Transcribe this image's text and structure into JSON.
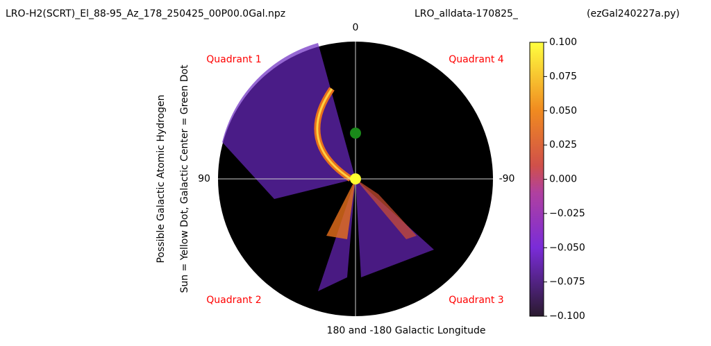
{
  "chart_data": {
    "type": "polar",
    "title_left": "LRO-H2(SCRT)_El_88-95_Az_178_250425_00P00.0Gal.npz",
    "title_center": "LRO_alldata-170825_",
    "title_right": "(ezGal240227a.py)",
    "xlabel": "180 and -180 Galactic Longitude",
    "ylabel_lines": [
      "Possible Galactic Atomic Hydrogen",
      "Sun = Yellow Dot, Galactic Center = Green Dot"
    ],
    "thetaticks": [
      0,
      90,
      -90
    ],
    "annotations": [
      "Quadrant 1",
      "Quadrant 4",
      "Quadrant 2",
      "Quadrant 3"
    ],
    "colorbar": {
      "lim": [
        -0.1,
        0.1
      ],
      "ticks": [
        {
          "value": 0.1,
          "label": "0.100"
        },
        {
          "value": 0.075,
          "label": "0.075"
        },
        {
          "value": 0.05,
          "label": "0.050"
        },
        {
          "value": 0.025,
          "label": "0.025"
        },
        {
          "value": 0,
          "label": "0.000"
        },
        {
          "value": -0.025,
          "label": "−0.025"
        },
        {
          "value": -0.05,
          "label": "−0.050"
        },
        {
          "value": -0.075,
          "label": "−0.075"
        },
        {
          "value": -0.1,
          "label": "−0.100"
        }
      ]
    }
  }
}
